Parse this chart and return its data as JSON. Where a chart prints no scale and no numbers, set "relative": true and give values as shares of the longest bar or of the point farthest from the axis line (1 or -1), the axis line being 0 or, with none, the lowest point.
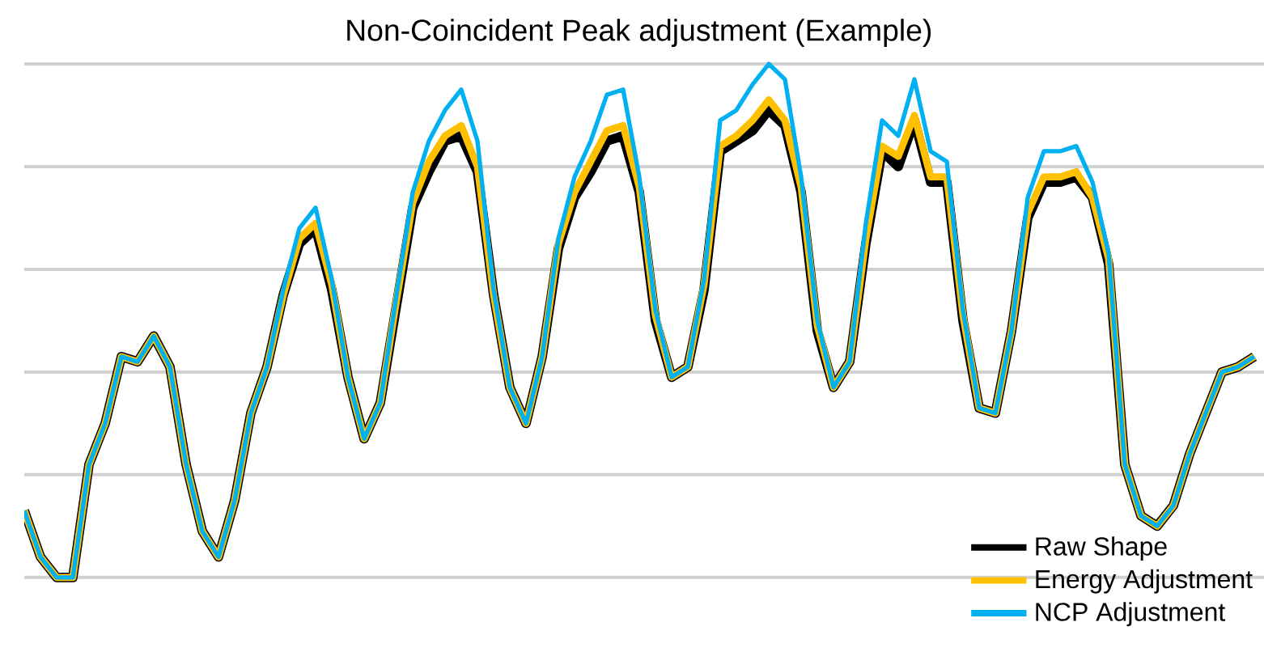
{
  "chart_data": {
    "type": "line",
    "title": "Non-Coincident Peak adjustment (Example)",
    "relative": true,
    "grid": "y",
    "legend": "bottom right",
    "marker": "none",
    "line_style": "solid",
    "categories": [
      null,
      null,
      null,
      null,
      null,
      null,
      null,
      null,
      null,
      null,
      null,
      null,
      null,
      null,
      null,
      null,
      null,
      null,
      null,
      null,
      null,
      null,
      null,
      null,
      null,
      null,
      null,
      null,
      null,
      null,
      null,
      null,
      null,
      null,
      null,
      null,
      null,
      null,
      null,
      null,
      null,
      null,
      null,
      null,
      null,
      null,
      null,
      null,
      null,
      null,
      null,
      null,
      null,
      null,
      null,
      null,
      null,
      null,
      null,
      null,
      null,
      null,
      null,
      null,
      null,
      null,
      null,
      null,
      null,
      null,
      null,
      null,
      null,
      null,
      null,
      null,
      null
    ],
    "series": [
      {
        "name": "Raw Shape",
        "color": "#000000",
        "values": [
          0.13,
          0.04,
          0,
          0,
          0.22,
          0.3,
          0.43,
          0.42,
          0.47,
          0.41,
          0.22,
          0.09,
          0.04,
          0.15,
          0.32,
          0.41,
          0.55,
          0.65,
          0.68,
          0.56,
          0.39,
          0.27,
          0.34,
          0.53,
          0.72,
          0.79,
          0.85,
          0.86,
          0.79,
          0.55,
          0.37,
          0.3,
          0.43,
          0.64,
          0.74,
          0.79,
          0.85,
          0.86,
          0.75,
          0.5,
          0.39,
          0.41,
          0.56,
          0.83,
          0.85,
          0.87,
          0.91,
          0.88,
          0.75,
          0.48,
          0.37,
          0.42,
          0.65,
          0.83,
          0.8,
          0.89,
          0.77,
          0.77,
          0.5,
          0.33,
          0.32,
          0.48,
          0.7,
          0.77,
          0.77,
          0.78,
          0.74,
          0.61,
          0.22,
          0.12,
          0.1,
          0.14,
          0.24,
          0.32,
          0.4,
          0.41,
          0.43
        ]
      },
      {
        "name": "Energy Adjustment",
        "color": "#ffc000",
        "values": [
          0.13,
          0.04,
          0,
          0,
          0.22,
          0.3,
          0.43,
          0.42,
          0.47,
          0.41,
          0.22,
          0.09,
          0.04,
          0.15,
          0.32,
          0.41,
          0.55,
          0.66,
          0.69,
          0.57,
          0.39,
          0.27,
          0.34,
          0.54,
          0.73,
          0.81,
          0.86,
          0.88,
          0.8,
          0.55,
          0.37,
          0.3,
          0.43,
          0.65,
          0.75,
          0.81,
          0.87,
          0.88,
          0.76,
          0.51,
          0.39,
          0.41,
          0.57,
          0.84,
          0.86,
          0.89,
          0.93,
          0.89,
          0.76,
          0.49,
          0.37,
          0.42,
          0.66,
          0.84,
          0.82,
          0.9,
          0.78,
          0.78,
          0.51,
          0.33,
          0.32,
          0.48,
          0.71,
          0.78,
          0.78,
          0.79,
          0.74,
          0.62,
          0.22,
          0.12,
          0.1,
          0.14,
          0.24,
          0.32,
          0.4,
          0.41,
          0.43
        ]
      },
      {
        "name": "NCP Adjustment",
        "color": "#00b0f0",
        "values": [
          0.13,
          0.04,
          0,
          0,
          0.22,
          0.3,
          0.43,
          0.42,
          0.47,
          0.41,
          0.22,
          0.09,
          0.04,
          0.15,
          0.32,
          0.41,
          0.56,
          0.68,
          0.72,
          0.58,
          0.39,
          0.27,
          0.34,
          0.55,
          0.75,
          0.85,
          0.91,
          0.95,
          0.85,
          0.56,
          0.37,
          0.3,
          0.43,
          0.66,
          0.78,
          0.85,
          0.94,
          0.95,
          0.78,
          0.52,
          0.39,
          0.41,
          0.58,
          0.89,
          0.91,
          0.96,
          1,
          0.97,
          0.78,
          0.5,
          0.37,
          0.42,
          0.69,
          0.89,
          0.86,
          0.97,
          0.83,
          0.81,
          0.52,
          0.33,
          0.32,
          0.48,
          0.74,
          0.83,
          0.83,
          0.84,
          0.77,
          0.63,
          0.22,
          0.12,
          0.1,
          0.14,
          0.24,
          0.32,
          0.4,
          0.41,
          0.43
        ]
      }
    ]
  }
}
